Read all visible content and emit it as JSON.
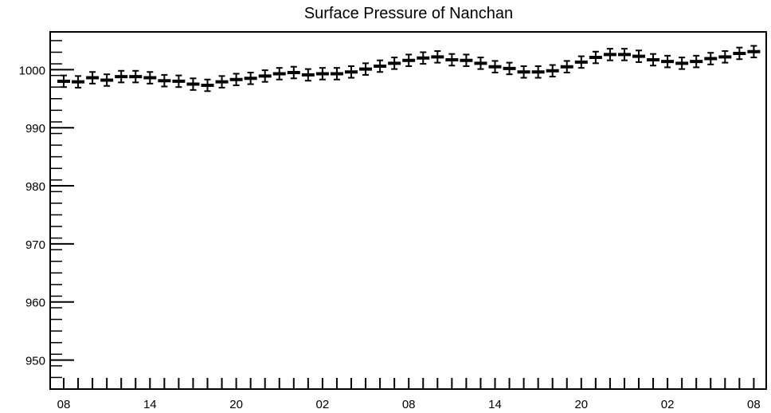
{
  "chart_data": {
    "type": "scatter",
    "title": "Surface Pressure of Nanchan",
    "xlabel": "",
    "ylabel": "",
    "ylim": [
      945,
      1006.5
    ],
    "y_ticks": [
      950,
      960,
      970,
      980,
      990,
      1000
    ],
    "y_tick_labels": [
      "950",
      "960",
      "970",
      "980",
      "990",
      "1000"
    ],
    "x_tick_labels": [
      "08",
      "14",
      "20",
      "02",
      "08",
      "14",
      "20",
      "02",
      "08"
    ],
    "x_step_hours": 1,
    "error": 1.0,
    "grid": false,
    "series": [
      {
        "x": [
          0,
          1,
          2,
          3,
          4,
          5,
          6,
          7,
          8,
          9,
          10,
          11,
          12,
          13,
          14,
          15,
          16,
          17,
          18,
          19,
          20,
          21,
          22,
          23,
          24,
          25,
          26,
          27,
          28,
          29,
          30,
          31,
          32,
          33,
          34,
          35,
          36,
          37,
          38,
          39,
          40,
          41,
          42,
          43,
          44,
          45,
          46,
          47,
          48
        ],
        "values": [
          998.0,
          997.9,
          998.6,
          998.2,
          998.8,
          998.8,
          998.6,
          998.1,
          998.0,
          997.5,
          997.3,
          997.9,
          998.3,
          998.5,
          998.9,
          999.3,
          999.5,
          999.1,
          999.3,
          999.3,
          999.6,
          1000.1,
          1000.6,
          1001.1,
          1001.6,
          1002.0,
          1002.2,
          1001.7,
          1001.6,
          1001.1,
          1000.5,
          1000.2,
          999.6,
          999.6,
          999.8,
          1000.5,
          1001.3,
          1002.1,
          1002.6,
          1002.6,
          1002.3,
          1001.7,
          1001.4,
          1001.1,
          1001.4,
          1001.9,
          1002.2,
          1002.8,
          1003.1
        ]
      }
    ]
  }
}
